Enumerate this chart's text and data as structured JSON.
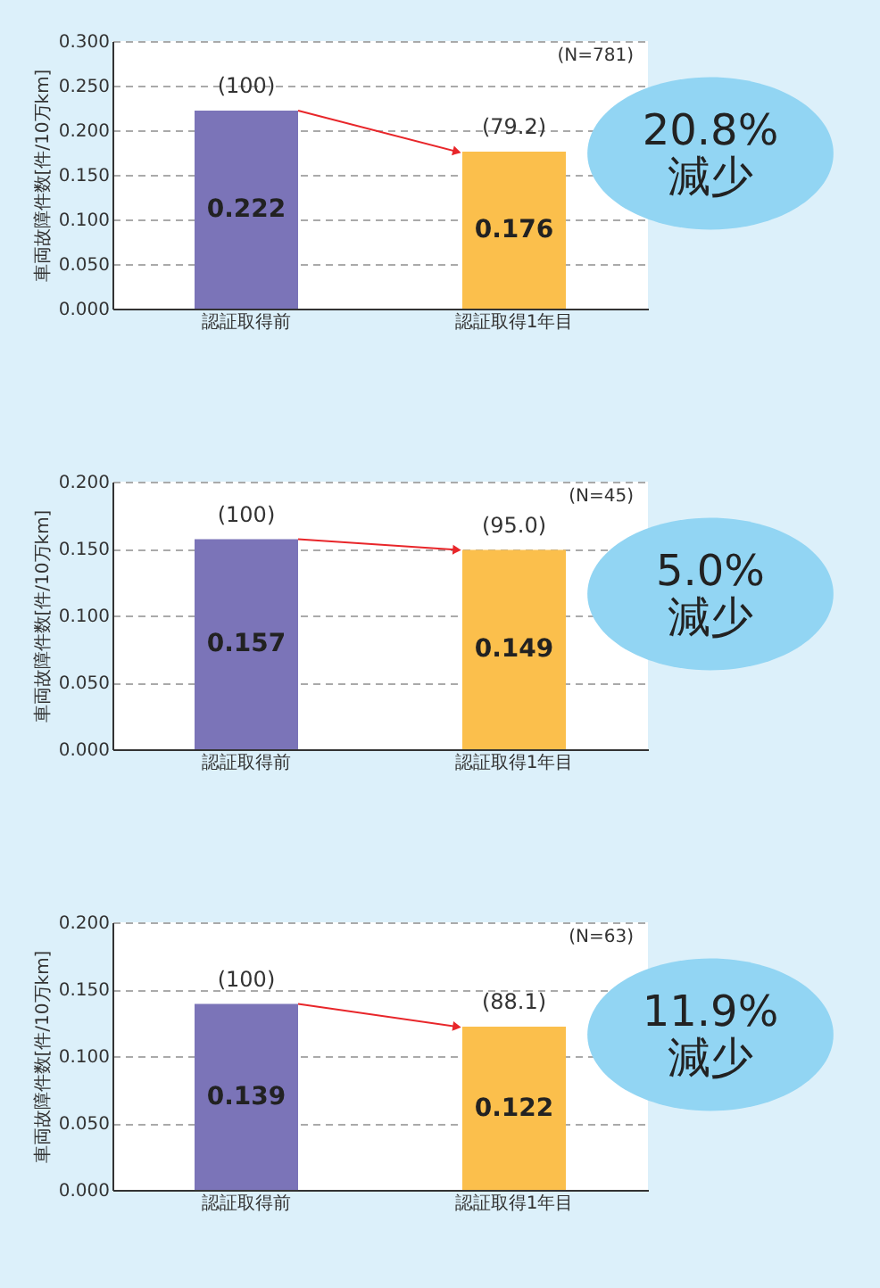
{
  "chart_data": [
    {
      "type": "bar",
      "ylabel": "車両故障件数[件/10万km]",
      "categories": [
        "認証取得前",
        "認証取得1年目"
      ],
      "values": [
        0.222,
        0.176
      ],
      "colors": [
        "#7b74b8",
        "#fbbf4c"
      ],
      "ylim": [
        0,
        0.3
      ],
      "yticks": [
        {
          "value": 0,
          "label": "0.000"
        },
        {
          "value": 0.05,
          "label": "0.050"
        },
        {
          "value": 0.1,
          "label": "0.100"
        },
        {
          "value": 0.15,
          "label": "0.150"
        },
        {
          "value": 0.2,
          "label": "0.200"
        },
        {
          "value": 0.25,
          "label": "0.250"
        },
        {
          "value": 0.3,
          "label": "0.300"
        }
      ],
      "grid": "y",
      "data_labels": true,
      "annotations": [
        "(N=781)",
        "20.8%\n減少",
        {
          "text": "(100)",
          "x": "認証取得前",
          "y": 0.222
        },
        {
          "text": "(79.2)",
          "x": "認証取得1年目",
          "y": 0.176
        }
      ]
    },
    {
      "type": "bar",
      "ylabel": "車両故障件数[件/10万km]",
      "categories": [
        "認証取得前",
        "認証取得1年目"
      ],
      "values": [
        0.157,
        0.149
      ],
      "colors": [
        "#7b74b8",
        "#fbbf4c"
      ],
      "ylim": [
        0,
        0.2
      ],
      "yticks": [
        {
          "value": 0,
          "label": "0.000"
        },
        {
          "value": 0.05,
          "label": "0.050"
        },
        {
          "value": 0.1,
          "label": "0.100"
        },
        {
          "value": 0.15,
          "label": "0.150"
        },
        {
          "value": 0.2,
          "label": "0.200"
        }
      ],
      "grid": "y",
      "data_labels": true,
      "annotations": [
        "(N=45)",
        "5.0%\n減少",
        {
          "text": "(100)",
          "x": "認証取得前",
          "y": 0.157
        },
        {
          "text": "(95.0)",
          "x": "認証取得1年目",
          "y": 0.149
        }
      ]
    },
    {
      "type": "bar",
      "ylabel": "車両故障件数[件/10万km]",
      "categories": [
        "認証取得前",
        "認証取得1年目"
      ],
      "values": [
        0.139,
        0.122
      ],
      "colors": [
        "#7b74b8",
        "#fbbf4c"
      ],
      "ylim": [
        0,
        0.2
      ],
      "yticks": [
        {
          "value": 0,
          "label": "0.000"
        },
        {
          "value": 0.05,
          "label": "0.050"
        },
        {
          "value": 0.1,
          "label": "0.100"
        },
        {
          "value": 0.15,
          "label": "0.150"
        },
        {
          "value": 0.2,
          "label": "0.200"
        }
      ],
      "grid": "y",
      "data_labels": true,
      "annotations": [
        "(N=63)",
        "11.9%\n減少",
        {
          "text": "(100)",
          "x": "認証取得前",
          "y": 0.139
        },
        {
          "text": "(88.1)",
          "x": "認証取得1年目",
          "y": 0.122
        }
      ]
    }
  ]
}
